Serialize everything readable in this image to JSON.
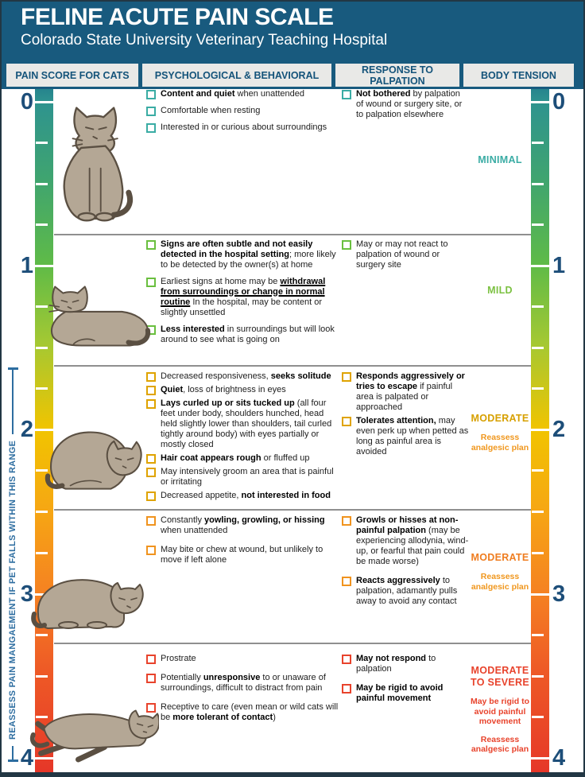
{
  "header": {
    "title": "FELINE ACUTE PAIN SCALE",
    "subtitle": "Colorado State University Veterinary Teaching Hospital"
  },
  "columns": [
    "PAIN SCORE FOR CATS",
    "PSYCHOLOGICAL & BEHAVIORAL",
    "RESPONSE TO PALPATION",
    "BODY TENSION"
  ],
  "side_note": "REASSESS PAIN MANGAEMENT IF PET FALLS WITHIN THIS RANGE",
  "scale": {
    "labels": [
      "0",
      "1",
      "2",
      "3",
      "4"
    ],
    "number_color": "#1d4e79",
    "gradient_colors": [
      "#26848e",
      "#5fbb47",
      "#f1c400",
      "#f58122",
      "#e63628"
    ]
  },
  "rows": [
    {
      "score": "0",
      "accent": "#3aaca4",
      "cat": "alert cat sitting upright",
      "behavioral": [
        "**Content and quiet** when unattended",
        "Comfortable when resting",
        "Interested in or curious about surroundings"
      ],
      "palpation": [
        "**Not bothered** by palpation of wound or surgery site, or to palpation elsewhere"
      ],
      "tension": {
        "label": "MINIMAL",
        "color": "#3aaca4",
        "notes": [],
        "notes_color": "#3aaca4"
      }
    },
    {
      "score": "1",
      "accent": "#6abf3f",
      "cat": "cat resting on chest, head up",
      "behavioral": [
        "**Signs are often subtle and not easily detected in the hospital setting**; more likely to be detected by the owner(s) at home",
        "Earliest signs at home may be __withdrawal from surroundings or change in normal routine__ In the hospital, may be content or slightly unsettled",
        "**Less interested** in surroundings but will look around to see what is going on"
      ],
      "palpation": [
        "May or may not react to palpation of wound or surgery site"
      ],
      "tension": {
        "label": "MILD",
        "color": "#7cc142",
        "notes": [],
        "notes_color": "#7cc142"
      }
    },
    {
      "score": "2",
      "accent": "#dfa300",
      "cat": "cat curled up, shoulders hunched",
      "behavioral": [
        "Decreased responsiveness, **seeks solitude**",
        "**Quiet**, loss of brightness in eyes",
        "**Lays curled up or sits tucked up** (all four feet under body, shoulders hunched, head held slightly lower than shoulders, tail curled tightly around body) with eyes partially or mostly closed",
        "**Hair coat appears rough** or fluffed up",
        "May intensively groom an area that is painful or irritating",
        "Decreased appetite, **not interested in food**"
      ],
      "palpation": [
        "**Responds aggressively or tries to escape** if painful area is palpated or approached",
        "**Tolerates attention,** may even perk up when petted as long as painful area is avoided"
      ],
      "tension": {
        "label": "MODERATE",
        "color": "#d7a000",
        "notes": [
          "Reassess analgesic plan"
        ],
        "notes_color": "#f0971e"
      }
    },
    {
      "score": "3",
      "accent": "#f0931e",
      "cat": "tense cat crouched low",
      "behavioral": [
        "Constantly **yowling, growling, or hissing** when unattended",
        "May bite or chew at wound, but unlikely to move if left alone"
      ],
      "palpation": [
        "**Growls or hisses at non-painful palpation** (may be experiencing allodynia, wind-up, or fearful that pain could be made worse)",
        "**Reacts aggressively** to palpation, adamantly pulls away to avoid any contact"
      ],
      "tension": {
        "label": "MODERATE",
        "color": "#ef7d20",
        "notes": [
          "Reassess analgesic plan"
        ],
        "notes_color": "#f0971e"
      }
    },
    {
      "score": "4",
      "accent": "#e8432c",
      "cat": "prostrate cat lying flat on side",
      "behavioral": [
        "Prostrate",
        "Potentially **unresponsive** to or unaware of surroundings, difficult to distract from pain",
        "Receptive to care (even mean or wild cats will be **more tolerant of contact**)"
      ],
      "palpation": [
        "**May not respond** to palpation",
        "**May be rigid to avoid painful movement**"
      ],
      "tension": {
        "label": "MODERATE TO SEVERE",
        "color": "#e8432c",
        "notes": [
          "May be rigid to avoid painful movement",
          "Reassess analgesic plan"
        ],
        "notes_color": "#e8432c"
      }
    }
  ]
}
